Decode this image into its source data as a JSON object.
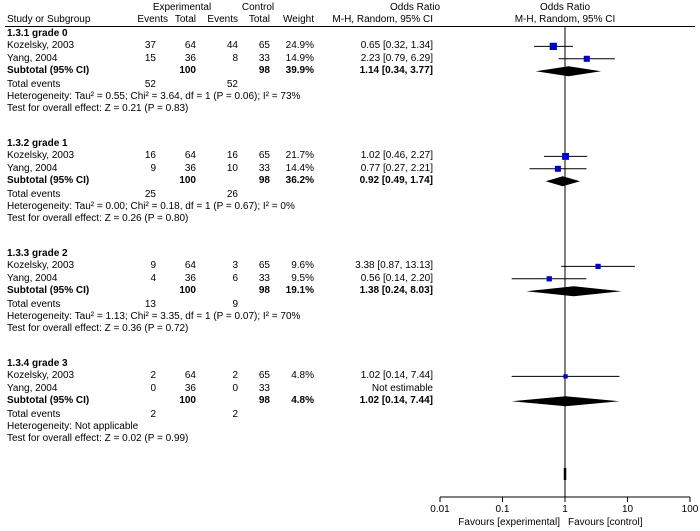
{
  "header": {
    "group_experimental": "Experimental",
    "group_control": "Control",
    "group_or_left": "Odds Ratio",
    "group_or_right": "Odds Ratio",
    "col_study": "Study or Subgroup",
    "col_events_e": "Events",
    "col_total_e": "Total",
    "col_events_c": "Events",
    "col_total_c": "Total",
    "col_weight": "Weight",
    "col_ci_left": "M-H, Random, 95% CI",
    "col_ci_right": "M-H, Random, 95% CI"
  },
  "subgroups": [
    {
      "title": "1.3.1 grade 0",
      "studies": [
        {
          "name": "Kozelsky, 2003",
          "e_events": "37",
          "e_total": "64",
          "c_events": "44",
          "c_total": "65",
          "weight": "24.9%",
          "ci": "0.65 [0.32, 1.34]"
        },
        {
          "name": "Yang, 2004",
          "e_events": "15",
          "e_total": "36",
          "c_events": "8",
          "c_total": "33",
          "weight": "14.9%",
          "ci": "2.23 [0.79, 6.29]"
        }
      ],
      "subtotal": {
        "label": "Subtotal (95% CI)",
        "e_total": "100",
        "c_total": "98",
        "weight": "39.9%",
        "ci": "1.14 [0.34, 3.77]"
      },
      "total_events": {
        "label": "Total events",
        "e": "52",
        "c": "52"
      },
      "heterogeneity": "Heterogeneity: Tau² = 0.55; Chi² = 3.64, df = 1 (P = 0.06); I² = 73%",
      "overall": "Test for overall effect: Z = 0.21 (P = 0.83)"
    },
    {
      "title": "1.3.2 grade 1",
      "studies": [
        {
          "name": "Kozelsky, 2003",
          "e_events": "16",
          "e_total": "64",
          "c_events": "16",
          "c_total": "65",
          "weight": "21.7%",
          "ci": "1.02 [0.46, 2.27]"
        },
        {
          "name": "Yang, 2004",
          "e_events": "9",
          "e_total": "36",
          "c_events": "10",
          "c_total": "33",
          "weight": "14.4%",
          "ci": "0.77 [0.27, 2.21]"
        }
      ],
      "subtotal": {
        "label": "Subtotal (95% CI)",
        "e_total": "100",
        "c_total": "98",
        "weight": "36.2%",
        "ci": "0.92 [0.49, 1.74]"
      },
      "total_events": {
        "label": "Total events",
        "e": "25",
        "c": "26"
      },
      "heterogeneity": "Heterogeneity: Tau² = 0.00; Chi² = 0.18, df = 1 (P = 0.67); I² = 0%",
      "overall": "Test for overall effect: Z = 0.26 (P = 0.80)"
    },
    {
      "title": "1.3.3 grade 2",
      "studies": [
        {
          "name": "Kozelsky, 2003",
          "e_events": "9",
          "e_total": "64",
          "c_events": "3",
          "c_total": "65",
          "weight": "9.6%",
          "ci": "3.38 [0.87, 13.13]"
        },
        {
          "name": "Yang, 2004",
          "e_events": "4",
          "e_total": "36",
          "c_events": "6",
          "c_total": "33",
          "weight": "9.5%",
          "ci": "0.56 [0.14, 2.20]"
        }
      ],
      "subtotal": {
        "label": "Subtotal (95% CI)",
        "e_total": "100",
        "c_total": "98",
        "weight": "19.1%",
        "ci": "1.38 [0.24, 8.03]"
      },
      "total_events": {
        "label": "Total events",
        "e": "13",
        "c": "9"
      },
      "heterogeneity": "Heterogeneity: Tau² = 1.13; Chi² = 3.35, df = 1 (P = 0.07); I² = 70%",
      "overall": "Test for overall effect: Z = 0.36 (P = 0.72)"
    },
    {
      "title": "1.3.4 grade 3",
      "studies": [
        {
          "name": "Kozelsky, 2003",
          "e_events": "2",
          "e_total": "64",
          "c_events": "2",
          "c_total": "65",
          "weight": "4.8%",
          "ci": "1.02 [0.14, 7.44]"
        },
        {
          "name": "Yang, 2004",
          "e_events": "0",
          "e_total": "36",
          "c_events": "0",
          "c_total": "33",
          "weight": "",
          "ci": "Not estimable"
        }
      ],
      "subtotal": {
        "label": "Subtotal (95% CI)",
        "e_total": "100",
        "c_total": "98",
        "weight": "4.8%",
        "ci": "1.02 [0.14, 7.44]"
      },
      "total_events": {
        "label": "Total events",
        "e": "2",
        "c": "2"
      },
      "heterogeneity": "Heterogeneity: Not applicable",
      "overall": "Test for overall effect: Z = 0.02 (P = 0.99)"
    }
  ],
  "axis": {
    "ticks": [
      "0.01",
      "0.1",
      "1",
      "10",
      "100"
    ],
    "favours_left": "Favours [experimental]",
    "favours_right": "Favours [control]"
  },
  "colors": {
    "marker": "#0000cc",
    "diamond": "#000000",
    "line": "#000000"
  },
  "chart_data": {
    "type": "forest",
    "scale": "log",
    "xlim": [
      0.01,
      100
    ],
    "null_line": 1,
    "series": [
      {
        "name": "1.3.1 grade 0",
        "studies": [
          {
            "or": 0.65,
            "lo": 0.32,
            "hi": 1.34,
            "weight": 24.9
          },
          {
            "or": 2.23,
            "lo": 0.79,
            "hi": 6.29,
            "weight": 14.9
          }
        ],
        "subtotal": {
          "or": 1.14,
          "lo": 0.34,
          "hi": 3.77
        }
      },
      {
        "name": "1.3.2 grade 1",
        "studies": [
          {
            "or": 1.02,
            "lo": 0.46,
            "hi": 2.27,
            "weight": 21.7
          },
          {
            "or": 0.77,
            "lo": 0.27,
            "hi": 2.21,
            "weight": 14.4
          }
        ],
        "subtotal": {
          "or": 0.92,
          "lo": 0.49,
          "hi": 1.74
        }
      },
      {
        "name": "1.3.3 grade 2",
        "studies": [
          {
            "or": 3.38,
            "lo": 0.87,
            "hi": 13.13,
            "weight": 9.6
          },
          {
            "or": 0.56,
            "lo": 0.14,
            "hi": 2.2,
            "weight": 9.5
          }
        ],
        "subtotal": {
          "or": 1.38,
          "lo": 0.24,
          "hi": 8.03
        }
      },
      {
        "name": "1.3.4 grade 3",
        "studies": [
          {
            "or": 1.02,
            "lo": 0.14,
            "hi": 7.44,
            "weight": 4.8
          },
          null
        ],
        "subtotal": {
          "or": 1.02,
          "lo": 0.14,
          "hi": 7.44
        }
      }
    ]
  }
}
